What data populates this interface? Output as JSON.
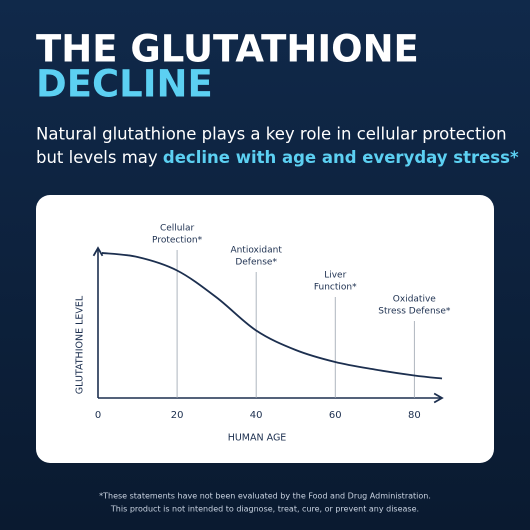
{
  "header": {
    "title_lines": [
      "THE GLUTATHIONE",
      "DECLINE"
    ],
    "subtitle_line1": "Natural glutathione plays a key role in cellular protection",
    "subtitle_line2_plain": "but levels may ",
    "subtitle_line2_bold": "decline with age and everyday stress*"
  },
  "chart_data": {
    "type": "line",
    "x": [
      1,
      10,
      20,
      30,
      40,
      50,
      60,
      70,
      80,
      87
    ],
    "values": [
      96.7,
      94,
      85,
      67,
      45,
      32,
      24,
      19,
      15,
      13
    ],
    "color": "#1c2f4f",
    "xlim": [
      0,
      87
    ],
    "ylim": [
      0,
      100
    ],
    "xticks": [
      0,
      20,
      40,
      60,
      80
    ],
    "x_label": "HUMAN AGE",
    "y_label": "GLUTATHIONE LEVEL",
    "annotations": [
      {
        "x": 20,
        "lines": [
          "Cellular",
          "Protection*"
        ]
      },
      {
        "x": 40,
        "lines": [
          "Antioxidant",
          "Defense*"
        ]
      },
      {
        "x": 60,
        "lines": [
          "Liver",
          "Function*"
        ]
      },
      {
        "x": 80,
        "lines": [
          "Oxidative",
          "Stress Defense*"
        ]
      }
    ]
  },
  "footer": [
    "*These statements have not been evaluated by the Food and Drug Administration.",
    "This product is not intended to diagnose, treat, cure, or prevent any disease."
  ]
}
